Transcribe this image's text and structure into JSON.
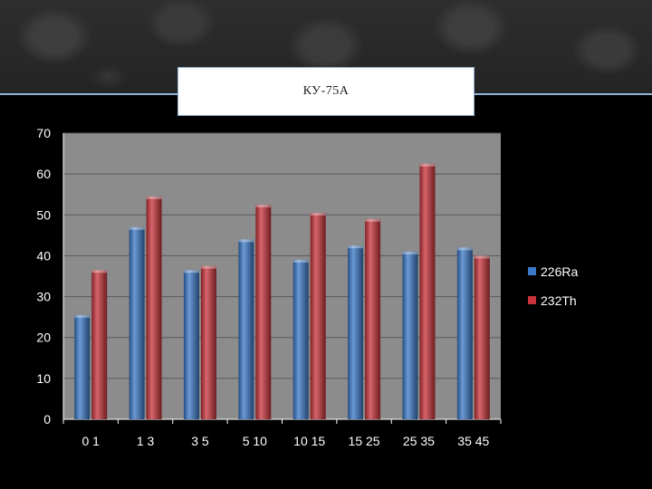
{
  "slide": {
    "title": "КУ-75А"
  },
  "colors": {
    "background": "#000000",
    "plot_area": "#8c8c8c",
    "gridline": "#5a5a5a",
    "series_1": "#3a78c8",
    "series_2": "#c8323a",
    "accent_line": "#8fb4d8"
  },
  "chart_data": {
    "type": "bar",
    "title": "КУ-75А",
    "categories": [
      "0 1",
      "1 3",
      "3 5",
      "5 10",
      "10 15",
      "15 25",
      "25 35",
      "35 45"
    ],
    "series": [
      {
        "name": "226Ra",
        "values": [
          25.5,
          47,
          36.5,
          44,
          39,
          42.5,
          41,
          42
        ]
      },
      {
        "name": "232Th",
        "values": [
          36.5,
          54.5,
          37.5,
          52.5,
          50.5,
          49,
          62.5,
          40
        ]
      }
    ],
    "y_ticks": [
      "0",
      "10",
      "20",
      "30",
      "40",
      "50",
      "60",
      "70"
    ],
    "ylim": [
      0,
      70
    ],
    "grid": true,
    "legend_position": "right"
  }
}
